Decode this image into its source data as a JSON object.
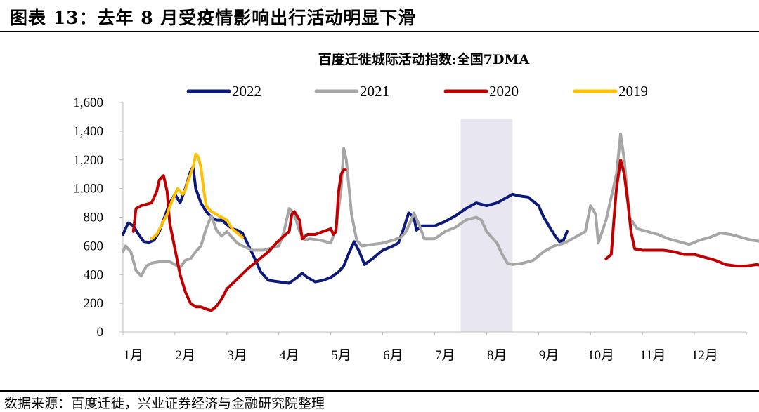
{
  "figure": {
    "title": "图表 13：去年 8 月受疫情影响出行活动明显下滑",
    "source": "数据来源：百度迁徙，兴业证券经济与金融研究院整理"
  },
  "chart_data": {
    "type": "line",
    "title": "百度迁徙城际活动指数:全国7DMA",
    "xlabel": "",
    "ylabel": "",
    "xlim": [
      0,
      12
    ],
    "ylim": [
      0,
      1600
    ],
    "yticks": [
      0,
      200,
      400,
      600,
      800,
      1000,
      1200,
      1400,
      1600
    ],
    "ytick_labels": [
      "0",
      "200",
      "400",
      "600",
      "800",
      "1,000",
      "1,200",
      "1,400",
      "1,600"
    ],
    "xtick_labels": [
      "1月",
      "2月",
      "3月",
      "4月",
      "5月",
      "6月",
      "7月",
      "8月",
      "9月",
      "10月",
      "11月",
      "12月"
    ],
    "highlight_band": [
      6.5,
      7.5
    ],
    "legend_position": "top",
    "series": [
      {
        "name": "2022",
        "color": "#0d1a7a",
        "points": [
          [
            0,
            680
          ],
          [
            0.1,
            760
          ],
          [
            0.2,
            740
          ],
          [
            0.3,
            680
          ],
          [
            0.4,
            630
          ],
          [
            0.5,
            625
          ],
          [
            0.6,
            640
          ],
          [
            0.7,
            700
          ],
          [
            0.8,
            800
          ],
          [
            0.9,
            900
          ],
          [
            1.0,
            960
          ],
          [
            1.1,
            900
          ],
          [
            1.2,
            1000
          ],
          [
            1.3,
            1120
          ],
          [
            1.35,
            1150
          ],
          [
            1.4,
            1000
          ],
          [
            1.5,
            900
          ],
          [
            1.6,
            840
          ],
          [
            1.7,
            800
          ],
          [
            1.8,
            780
          ],
          [
            1.9,
            780
          ],
          [
            2.0,
            750
          ],
          [
            2.1,
            720
          ],
          [
            2.2,
            710
          ],
          [
            2.3,
            690
          ],
          [
            2.5,
            540
          ],
          [
            2.65,
            420
          ],
          [
            2.8,
            360
          ],
          [
            3.0,
            350
          ],
          [
            3.2,
            340
          ],
          [
            3.35,
            380
          ],
          [
            3.45,
            410
          ],
          [
            3.55,
            380
          ],
          [
            3.7,
            350
          ],
          [
            3.85,
            360
          ],
          [
            4.0,
            380
          ],
          [
            4.15,
            420
          ],
          [
            4.25,
            460
          ],
          [
            4.35,
            550
          ],
          [
            4.45,
            630
          ],
          [
            4.55,
            560
          ],
          [
            4.65,
            470
          ],
          [
            4.8,
            510
          ],
          [
            5.0,
            570
          ],
          [
            5.2,
            600
          ],
          [
            5.3,
            620
          ],
          [
            5.4,
            720
          ],
          [
            5.5,
            830
          ],
          [
            5.6,
            800
          ],
          [
            5.65,
            710
          ],
          [
            5.75,
            740
          ],
          [
            6.0,
            740
          ],
          [
            6.2,
            770
          ],
          [
            6.4,
            810
          ],
          [
            6.6,
            860
          ],
          [
            6.8,
            900
          ],
          [
            6.9,
            890
          ],
          [
            7.0,
            880
          ],
          [
            7.2,
            900
          ],
          [
            7.4,
            940
          ],
          [
            7.5,
            960
          ],
          [
            7.6,
            950
          ],
          [
            7.8,
            940
          ],
          [
            8.0,
            880
          ],
          [
            8.1,
            800
          ],
          [
            8.2,
            740
          ],
          [
            8.3,
            680
          ],
          [
            8.4,
            630
          ],
          [
            8.48,
            640
          ],
          [
            8.55,
            700
          ]
        ]
      },
      {
        "name": "2021",
        "color": "#a6a6a6",
        "points": [
          [
            0,
            560
          ],
          [
            0.05,
            600
          ],
          [
            0.15,
            560
          ],
          [
            0.25,
            430
          ],
          [
            0.35,
            390
          ],
          [
            0.45,
            460
          ],
          [
            0.55,
            480
          ],
          [
            0.7,
            490
          ],
          [
            0.9,
            490
          ],
          [
            1.0,
            470
          ],
          [
            1.1,
            450
          ],
          [
            1.2,
            500
          ],
          [
            1.3,
            510
          ],
          [
            1.4,
            560
          ],
          [
            1.5,
            600
          ],
          [
            1.6,
            720
          ],
          [
            1.7,
            810
          ],
          [
            1.8,
            710
          ],
          [
            1.9,
            670
          ],
          [
            2.0,
            700
          ],
          [
            2.1,
            660
          ],
          [
            2.2,
            620
          ],
          [
            2.3,
            600
          ],
          [
            2.5,
            570
          ],
          [
            2.7,
            570
          ],
          [
            2.9,
            590
          ],
          [
            3.0,
            600
          ],
          [
            3.1,
            700
          ],
          [
            3.2,
            860
          ],
          [
            3.3,
            820
          ],
          [
            3.4,
            700
          ],
          [
            3.5,
            640
          ],
          [
            3.6,
            650
          ],
          [
            3.8,
            640
          ],
          [
            4.0,
            620
          ],
          [
            4.1,
            720
          ],
          [
            4.2,
            1000
          ],
          [
            4.25,
            1280
          ],
          [
            4.3,
            1200
          ],
          [
            4.4,
            820
          ],
          [
            4.5,
            640
          ],
          [
            4.6,
            600
          ],
          [
            4.8,
            610
          ],
          [
            5.0,
            620
          ],
          [
            5.2,
            640
          ],
          [
            5.35,
            660
          ],
          [
            5.45,
            700
          ],
          [
            5.55,
            780
          ],
          [
            5.6,
            830
          ],
          [
            5.7,
            750
          ],
          [
            5.8,
            650
          ],
          [
            6.0,
            650
          ],
          [
            6.2,
            700
          ],
          [
            6.4,
            730
          ],
          [
            6.6,
            780
          ],
          [
            6.8,
            800
          ],
          [
            6.9,
            780
          ],
          [
            7.0,
            700
          ],
          [
            7.1,
            660
          ],
          [
            7.2,
            620
          ],
          [
            7.3,
            540
          ],
          [
            7.4,
            480
          ],
          [
            7.5,
            470
          ],
          [
            7.7,
            480
          ],
          [
            7.9,
            500
          ],
          [
            8.1,
            560
          ],
          [
            8.3,
            600
          ],
          [
            8.5,
            620
          ],
          [
            8.7,
            660
          ],
          [
            8.9,
            700
          ],
          [
            9.0,
            880
          ],
          [
            9.1,
            820
          ],
          [
            9.15,
            620
          ],
          [
            9.3,
            780
          ],
          [
            9.5,
            1100
          ],
          [
            9.58,
            1380
          ],
          [
            9.65,
            1200
          ],
          [
            9.75,
            800
          ],
          [
            9.9,
            720
          ],
          [
            10.1,
            700
          ],
          [
            10.3,
            680
          ],
          [
            10.5,
            650
          ],
          [
            10.7,
            630
          ],
          [
            10.9,
            610
          ],
          [
            11.1,
            640
          ],
          [
            11.3,
            660
          ],
          [
            11.5,
            690
          ],
          [
            11.7,
            680
          ],
          [
            11.9,
            660
          ],
          [
            12.1,
            640
          ],
          [
            12.3,
            630
          ],
          [
            12.45,
            600
          ],
          [
            12.5,
            620
          ],
          [
            12.55,
            590
          ],
          [
            12.6,
            630
          ]
        ]
      },
      {
        "name": "2020",
        "color": "#c00000",
        "points": [
          [
            0.2,
            700
          ],
          [
            0.25,
            860
          ],
          [
            0.35,
            880
          ],
          [
            0.45,
            890
          ],
          [
            0.55,
            900
          ],
          [
            0.65,
            980
          ],
          [
            0.7,
            1060
          ],
          [
            0.78,
            1090
          ],
          [
            0.85,
            980
          ],
          [
            0.9,
            760
          ],
          [
            1.0,
            580
          ],
          [
            1.1,
            400
          ],
          [
            1.2,
            280
          ],
          [
            1.3,
            200
          ],
          [
            1.4,
            175
          ],
          [
            1.5,
            175
          ],
          [
            1.6,
            160
          ],
          [
            1.7,
            150
          ],
          [
            1.8,
            180
          ],
          [
            1.9,
            230
          ],
          [
            2.0,
            300
          ],
          [
            2.2,
            370
          ],
          [
            2.4,
            440
          ],
          [
            2.6,
            500
          ],
          [
            2.8,
            560
          ],
          [
            2.95,
            620
          ],
          [
            3.1,
            670
          ],
          [
            3.2,
            700
          ],
          [
            3.25,
            820
          ],
          [
            3.3,
            840
          ],
          [
            3.4,
            780
          ],
          [
            3.45,
            650
          ],
          [
            3.55,
            680
          ],
          [
            3.7,
            680
          ],
          [
            3.85,
            700
          ],
          [
            4.0,
            720
          ],
          [
            4.05,
            680
          ],
          [
            4.1,
            700
          ],
          [
            4.15,
            980
          ],
          [
            4.2,
            1100
          ],
          [
            4.25,
            1130
          ],
          [
            4.28,
            1130
          ]
        ]
      },
      {
        "name": "2020-late",
        "color": "#c00000",
        "legend": false,
        "points": [
          [
            9.3,
            510
          ],
          [
            9.4,
            540
          ],
          [
            9.45,
            780
          ],
          [
            9.5,
            1000
          ],
          [
            9.58,
            1200
          ],
          [
            9.65,
            1100
          ],
          [
            9.72,
            900
          ],
          [
            9.78,
            700
          ],
          [
            9.85,
            580
          ],
          [
            10.0,
            570
          ],
          [
            10.2,
            570
          ],
          [
            10.4,
            570
          ],
          [
            10.6,
            560
          ],
          [
            10.8,
            540
          ],
          [
            11.0,
            540
          ],
          [
            11.2,
            520
          ],
          [
            11.4,
            500
          ],
          [
            11.6,
            470
          ],
          [
            11.8,
            460
          ],
          [
            12.0,
            460
          ],
          [
            12.2,
            470
          ],
          [
            12.35,
            460
          ],
          [
            12.45,
            480
          ],
          [
            12.55,
            490
          ],
          [
            12.6,
            480
          ]
        ]
      },
      {
        "name": "2019",
        "color": "#ffc000",
        "points": [
          [
            0.55,
            650
          ],
          [
            0.65,
            680
          ],
          [
            0.75,
            750
          ],
          [
            0.85,
            820
          ],
          [
            0.95,
            920
          ],
          [
            1.05,
            1000
          ],
          [
            1.15,
            960
          ],
          [
            1.2,
            990
          ],
          [
            1.25,
            1050
          ],
          [
            1.3,
            1100
          ],
          [
            1.35,
            1150
          ],
          [
            1.4,
            1240
          ],
          [
            1.45,
            1220
          ],
          [
            1.5,
            1150
          ],
          [
            1.55,
            1000
          ],
          [
            1.6,
            880
          ],
          [
            1.7,
            840
          ],
          [
            1.8,
            820
          ],
          [
            1.9,
            800
          ],
          [
            2.0,
            780
          ],
          [
            2.1,
            720
          ],
          [
            2.2,
            690
          ],
          [
            2.3,
            660
          ]
        ]
      }
    ]
  }
}
